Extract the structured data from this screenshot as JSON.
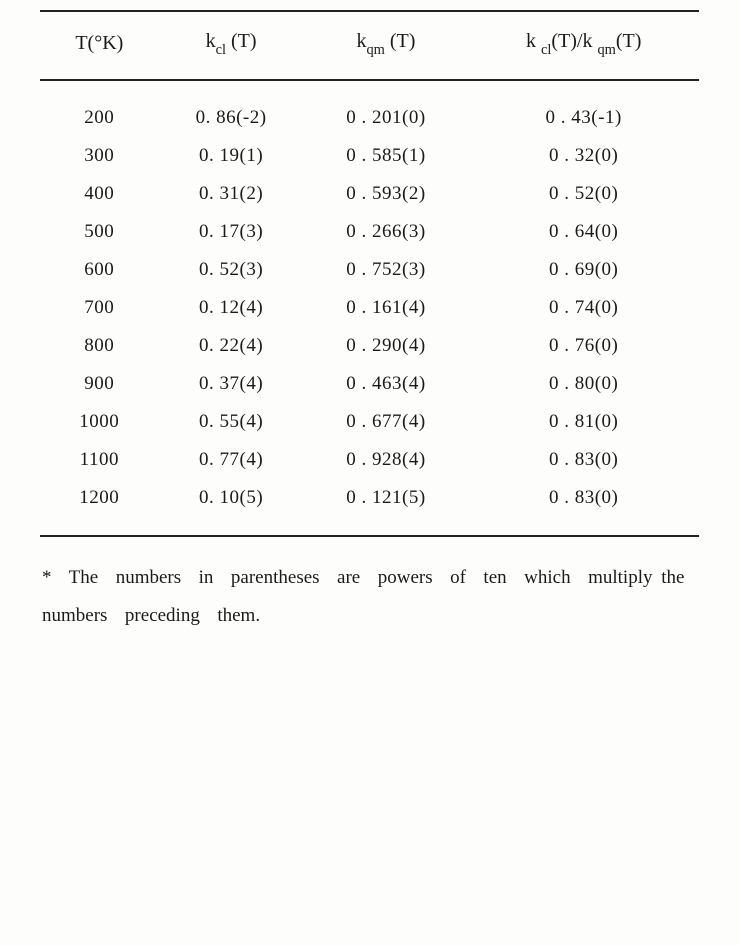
{
  "table": {
    "columns": {
      "t": {
        "label_html": "T(°K)"
      },
      "kcl": {
        "label_html": "k<span class=\"sub\">cl</span> (T)"
      },
      "kqm": {
        "label_html": "k<span class=\"sub\">qm</span> (T)"
      },
      "rat": {
        "label_html": "k <span class=\"sub\">cl</span>(T)/k <span class=\"sub\">qm</span>(T)"
      }
    },
    "rows": [
      {
        "t": "200",
        "kcl": "0. 86(-2)",
        "kqm": "0 . 201(0)",
        "rat": "0 . 43(-1)"
      },
      {
        "t": "300",
        "kcl": "0. 19(1)",
        "kqm": "0 . 585(1)",
        "rat": "0 . 32(0)"
      },
      {
        "t": "400",
        "kcl": "0. 31(2)",
        "kqm": "0 . 593(2)",
        "rat": "0 . 52(0)"
      },
      {
        "t": "500",
        "kcl": "0. 17(3)",
        "kqm": "0 . 266(3)",
        "rat": "0 . 64(0)"
      },
      {
        "t": "600",
        "kcl": "0. 52(3)",
        "kqm": "0 . 752(3)",
        "rat": "0 . 69(0)"
      },
      {
        "t": "700",
        "kcl": "0. 12(4)",
        "kqm": "0 . 161(4)",
        "rat": "0 . 74(0)"
      },
      {
        "t": "800",
        "kcl": "0. 22(4)",
        "kqm": "0 . 290(4)",
        "rat": "0 . 76(0)"
      },
      {
        "t": "900",
        "kcl": "0. 37(4)",
        "kqm": "0 . 463(4)",
        "rat": "0 . 80(0)"
      },
      {
        "t": "1000",
        "kcl": "0. 55(4)",
        "kqm": "0 . 677(4)",
        "rat": "0 . 81(0)"
      },
      {
        "t": "1100",
        "kcl": "0. 77(4)",
        "kqm": "0 . 928(4)",
        "rat": "0 . 83(0)"
      },
      {
        "t": "1200",
        "kcl": "0. 10(5)",
        "kqm": "0 . 121(5)",
        "rat": "0 . 83(0)"
      }
    ]
  },
  "footnote": "*  The  numbers  in  parentheses  are  powers  of  ten  which  multiply the  numbers  preceding  them."
}
